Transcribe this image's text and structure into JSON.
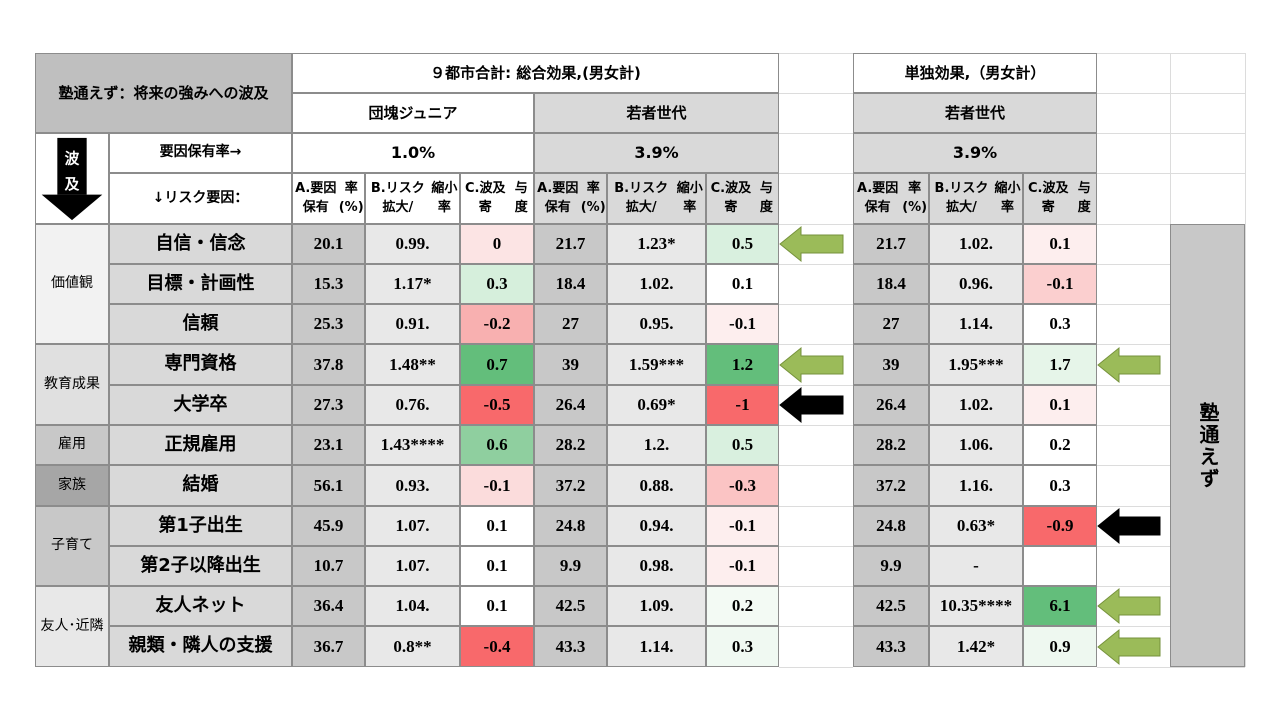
{
  "title": "塾通えず：将来の強みへの波及",
  "group_left_header": "９都市合計: 総合効果,(男女計)",
  "group_right_header": "単独効果,（男女計）",
  "sub_dankai": "団塊ジュニア",
  "sub_wakamono": "若者世代",
  "sub_wakamono_right": "若者世代",
  "hakyu_vertical": "波及",
  "factor_rate_label": "要因保有率→",
  "risk_factor_label": "↓リスク要因：",
  "rate_dankai": "1.0%",
  "rate_wakamono": "3.9%",
  "rate_wakamono_right": "3.9%",
  "col_a": "A.要因保有率(%)",
  "col_b": "B.リスク拡大/縮小率",
  "col_c": "C.波及寄与度",
  "side_label": "塾通えず",
  "categories": [
    {
      "name": "価値観"
    },
    {
      "name": "教育成果"
    },
    {
      "name": "雇用"
    },
    {
      "name": "家族"
    },
    {
      "name": "子育て"
    },
    {
      "name": "友人･近隣"
    }
  ],
  "rows": [
    {
      "item": "自信・信念",
      "d": [
        "20.1",
        "0.99.",
        "0"
      ],
      "w": [
        "21.7",
        "1.23*",
        "0.5"
      ],
      "s": [
        "21.7",
        "1.02.",
        "0.1"
      ]
    },
    {
      "item": "目標・計画性",
      "d": [
        "15.3",
        "1.17*",
        "0.3"
      ],
      "w": [
        "18.4",
        "1.02.",
        "0.1"
      ],
      "s": [
        "18.4",
        "0.96.",
        "-0.1"
      ]
    },
    {
      "item": "信頼",
      "d": [
        "25.3",
        "0.91.",
        "-0.2"
      ],
      "w": [
        "27",
        "0.95.",
        "-0.1"
      ],
      "s": [
        "27",
        "1.14.",
        "0.3"
      ]
    },
    {
      "item": "専門資格",
      "d": [
        "37.8",
        "1.48**",
        "0.7"
      ],
      "w": [
        "39",
        "1.59***",
        "1.2"
      ],
      "s": [
        "39",
        "1.95***",
        "1.7"
      ]
    },
    {
      "item": "大学卒",
      "d": [
        "27.3",
        "0.76.",
        "-0.5"
      ],
      "w": [
        "26.4",
        "0.69*",
        "-1"
      ],
      "s": [
        "26.4",
        "1.02.",
        "0.1"
      ]
    },
    {
      "item": "正規雇用",
      "d": [
        "23.1",
        "1.43****",
        "0.6"
      ],
      "w": [
        "28.2",
        "1.2.",
        "0.5"
      ],
      "s": [
        "28.2",
        "1.06.",
        "0.2"
      ]
    },
    {
      "item": "結婚",
      "d": [
        "56.1",
        "0.93.",
        "-0.1"
      ],
      "w": [
        "37.2",
        "0.88.",
        "-0.3"
      ],
      "s": [
        "37.2",
        "1.16.",
        "0.3"
      ]
    },
    {
      "item": "第1子出生",
      "d": [
        "45.9",
        "1.07.",
        "0.1"
      ],
      "w": [
        "24.8",
        "0.94.",
        "-0.1"
      ],
      "s": [
        "24.8",
        "0.63*",
        "-0.9"
      ]
    },
    {
      "item": "第2子以降出生",
      "d": [
        "10.7",
        "1.07.",
        "0.1"
      ],
      "w": [
        "9.9",
        "0.98.",
        "-0.1"
      ],
      "s": [
        "9.9",
        "-",
        ""
      ]
    },
    {
      "item": "友人ネット",
      "d": [
        "36.4",
        "1.04.",
        "0.1"
      ],
      "w": [
        "42.5",
        "1.09.",
        "0.2"
      ],
      "s": [
        "42.5",
        "10.35****",
        "6.1"
      ]
    },
    {
      "item": "親類・隣人の支援",
      "d": [
        "36.7",
        "0.8**",
        "-0.4"
      ],
      "w": [
        "43.3",
        "1.14.",
        "0.3"
      ],
      "s": [
        "43.3",
        "1.42*",
        "0.9"
      ]
    }
  ],
  "colors": {
    "header_gray": "#d9d9d9",
    "dark_gray": "#bfbfbf",
    "mid_gray": "#c8c8c8",
    "green_light": "#d9f0df",
    "green_mid": "#a8d8b1",
    "green_strong": "#63be7b",
    "red_light": "#fcdcdc",
    "red_mid": "#f8aaaa",
    "red_strong": "#f8696b",
    "arrow_green": "#9bbb59",
    "arrow_black": "#000000"
  },
  "arrows": [
    {
      "row": 0,
      "side": "mid",
      "color": "green"
    },
    {
      "row": 3,
      "side": "mid",
      "color": "green"
    },
    {
      "row": 4,
      "side": "mid",
      "color": "black"
    },
    {
      "row": 3,
      "side": "right",
      "color": "green"
    },
    {
      "row": 7,
      "side": "right",
      "color": "black"
    },
    {
      "row": 9,
      "side": "right",
      "color": "green"
    },
    {
      "row": 10,
      "side": "right",
      "color": "green"
    }
  ]
}
